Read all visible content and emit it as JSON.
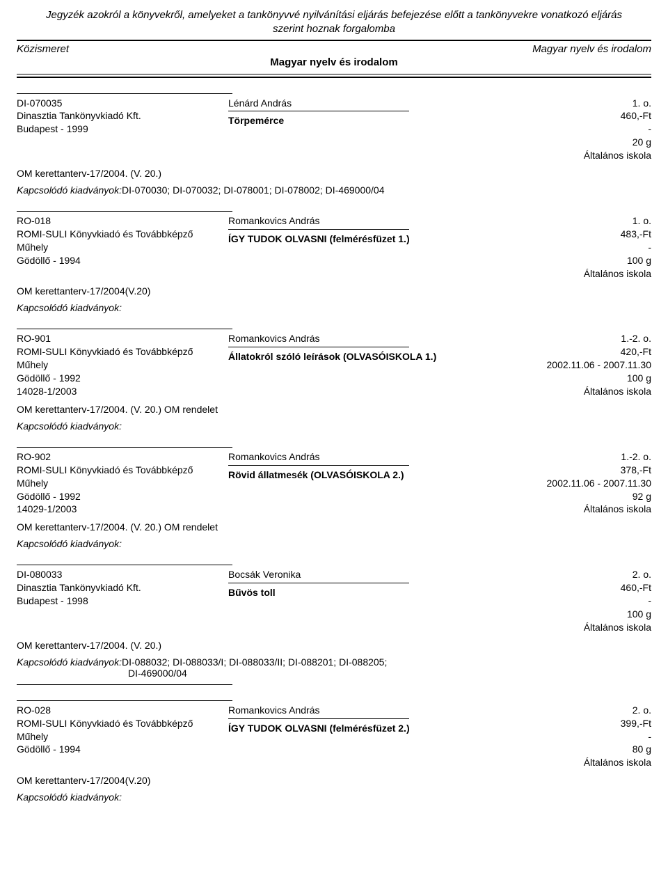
{
  "page": {
    "title_line1": "Jegyzék azokról a könyvekről, amelyeket a tankönyvvé nyilvánítási eljárás befejezése előtt a tankönyvekre vonatkozó eljárás",
    "title_line2": "szerint hoznak forgalomba",
    "header_left": "Közismeret",
    "header_right": "Magyar nyelv és irodalom",
    "header_center": "Magyar nyelv és irodalom"
  },
  "entries": [
    {
      "id": "DI-070035",
      "publisher": "Dinasztia Tankönyvkiadó Kft.",
      "city_year": "Budapest - 1999",
      "approval": "",
      "author": "Lénárd András",
      "title": "Törpemérce",
      "grade": "1. o.",
      "price": "460,-Ft",
      "dates": "-",
      "weight": "20 g",
      "school": "Általános iskola",
      "curriculum": "OM kerettanterv-17/2004. (V. 20.)",
      "related_label": "Kapcsolódó kiadványok:",
      "related_refs": "DI-070030; DI-070032; DI-078001; DI-078002; DI-469000/04",
      "related_sub": ""
    },
    {
      "id": "RO-018",
      "publisher": "ROMI-SULI Könyvkiadó és Továbbképző Műhely",
      "city_year": "Gödöllő - 1994",
      "approval": "",
      "author": "Romankovics András",
      "title": "ÍGY TUDOK OLVASNI (felmérésfüzet 1.)",
      "grade": "1. o.",
      "price": "483,-Ft",
      "dates": "-",
      "weight": "100 g",
      "school": "Általános iskola",
      "curriculum": "OM kerettanterv-17/2004(V.20)",
      "related_label": "Kapcsolódó kiadványok:",
      "related_refs": "",
      "related_sub": ""
    },
    {
      "id": "RO-901",
      "publisher": "ROMI-SULI Könyvkiadó és Továbbképző Műhely",
      "city_year": "Gödöllő - 1992",
      "approval": "14028-1/2003",
      "author": "Romankovics András",
      "title": "Állatokról szóló leírások (OLVASÓISKOLA 1.)",
      "grade": "1.-2. o.",
      "price": "420,-Ft",
      "dates": "2002.11.06 - 2007.11.30",
      "weight": "100 g",
      "school": "Általános iskola",
      "curriculum": "OM kerettanterv-17/2004. (V. 20.) OM rendelet",
      "related_label": "Kapcsolódó kiadványok:",
      "related_refs": "",
      "related_sub": ""
    },
    {
      "id": "RO-902",
      "publisher": "ROMI-SULI Könyvkiadó és Továbbképző Műhely",
      "city_year": "Gödöllő - 1992",
      "approval": "14029-1/2003",
      "author": "Romankovics András",
      "title": "Rövid állatmesék (OLVASÓISKOLA 2.)",
      "grade": "1.-2. o.",
      "price": "378,-Ft",
      "dates": "2002.11.06 - 2007.11.30",
      "weight": "92 g",
      "school": "Általános iskola",
      "curriculum": "OM kerettanterv-17/2004. (V. 20.) OM rendelet",
      "related_label": "Kapcsolódó kiadványok:",
      "related_refs": "",
      "related_sub": ""
    },
    {
      "id": "DI-080033",
      "publisher": "Dinasztia Tankönyvkiadó Kft.",
      "city_year": "Budapest - 1998",
      "approval": "",
      "author": "Bocsák Veronika",
      "title": "Bűvös toll",
      "grade": "2. o.",
      "price": "460,-Ft",
      "dates": "-",
      "weight": "100 g",
      "school": "Általános iskola",
      "curriculum": "OM kerettanterv-17/2004. (V. 20.)",
      "related_label": "Kapcsolódó kiadványok:",
      "related_refs": "DI-088032; DI-088033/I; DI-088033/II; DI-088201; DI-088205;",
      "related_sub": "DI-469000/04"
    },
    {
      "id": "RO-028",
      "publisher": "ROMI-SULI Könyvkiadó és Továbbképző Műhely",
      "city_year": "Gödöllő - 1994",
      "approval": "",
      "author": "Romankovics András",
      "title": "ÍGY TUDOK OLVASNI (felmérésfüzet 2.)",
      "grade": "2. o.",
      "price": "399,-Ft",
      "dates": "-",
      "weight": "80 g",
      "school": "Általános iskola",
      "curriculum": "OM kerettanterv-17/2004(V.20)",
      "related_label": "Kapcsolódó kiadványok:",
      "related_refs": "",
      "related_sub": ""
    }
  ]
}
